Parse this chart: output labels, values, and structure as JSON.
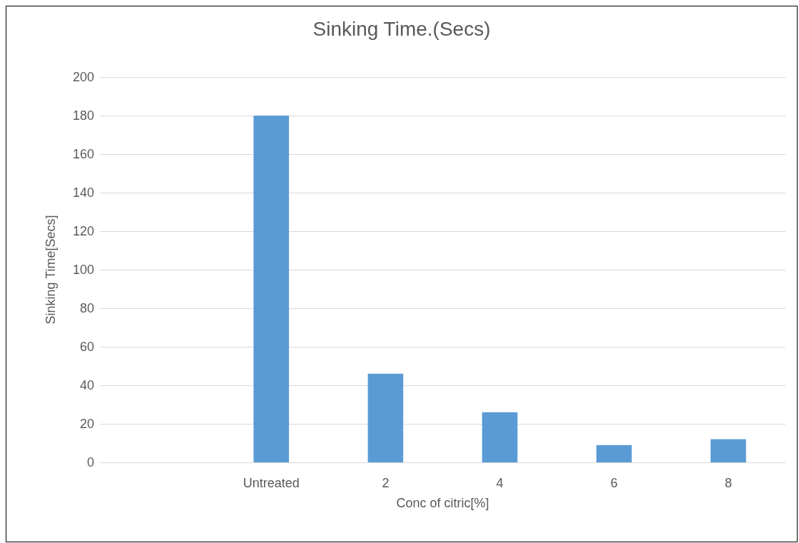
{
  "chart_data": {
    "type": "bar",
    "title": "Sinking Time.(Secs)",
    "xlabel": "Conc of citric[%]",
    "ylabel": "Sinking Time[Secs]",
    "categories": [
      null,
      "Untreated",
      "2",
      "4",
      "6",
      "8"
    ],
    "values": [
      null,
      180,
      46,
      26,
      9,
      12
    ],
    "color": "#5b9bd5",
    "ylim": [
      0,
      200
    ],
    "yticks": [
      0,
      20,
      40,
      60,
      80,
      100,
      120,
      140,
      160,
      180,
      200
    ],
    "grid": "y"
  }
}
